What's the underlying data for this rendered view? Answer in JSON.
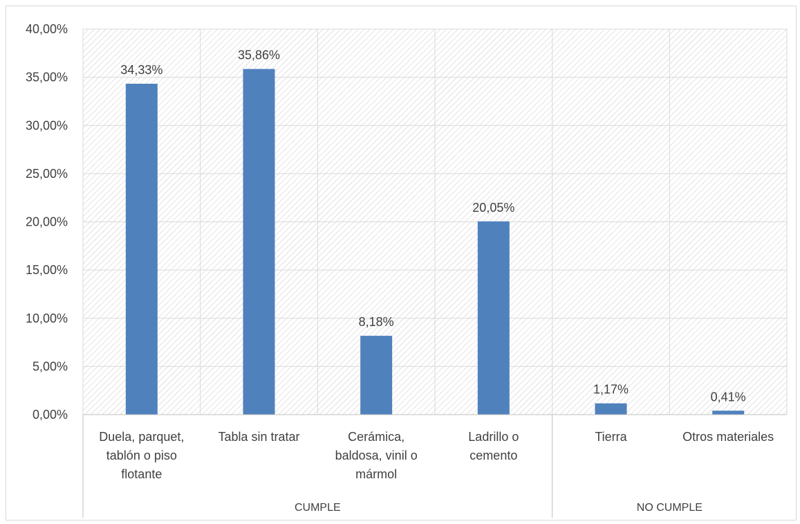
{
  "chart_data": {
    "type": "bar",
    "title": "",
    "xlabel": "",
    "ylabel": "",
    "ylim": [
      0,
      0.4
    ],
    "y_tick_step": 0.05,
    "y_tick_labels": [
      "0,00%",
      "5,00%",
      "10,00%",
      "15,00%",
      "20,00%",
      "25,00%",
      "30,00%",
      "35,00%",
      "40,00%"
    ],
    "grid": true,
    "legend": "none",
    "bar_color": "#4f81bd",
    "categories": [
      {
        "lines": [
          "Duela, parquet,",
          "tablón o piso",
          "flotante"
        ],
        "group": "CUMPLE"
      },
      {
        "lines": [
          "Tabla sin tratar"
        ],
        "group": "CUMPLE"
      },
      {
        "lines": [
          "Cerámica,",
          "baldosa, vinil o",
          "mármol"
        ],
        "group": "CUMPLE"
      },
      {
        "lines": [
          "Ladrillo o",
          "cemento"
        ],
        "group": "CUMPLE"
      },
      {
        "lines": [
          "Tierra"
        ],
        "group": "NO CUMPLE"
      },
      {
        "lines": [
          "Otros materiales"
        ],
        "group": "NO CUMPLE"
      }
    ],
    "values": [
      0.3433,
      0.3586,
      0.0818,
      0.2005,
      0.0117,
      0.0041
    ],
    "data_labels": [
      "34,33%",
      "35,86%",
      "8,18%",
      "20,05%",
      "1,17%",
      "0,41%"
    ],
    "groups": [
      {
        "name": "CUMPLE",
        "count": 4
      },
      {
        "name": "NO CUMPLE",
        "count": 2
      }
    ]
  }
}
